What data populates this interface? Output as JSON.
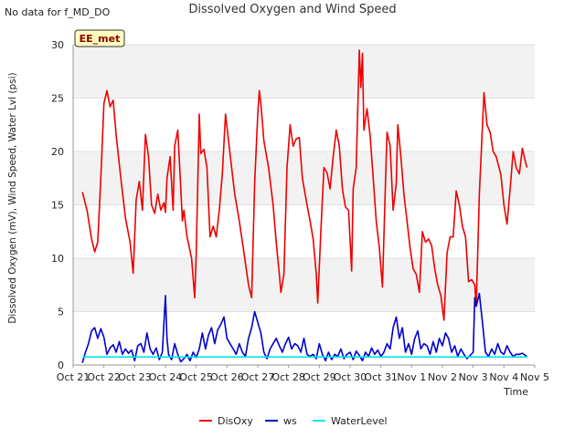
{
  "header": {
    "note": "No data for f_MD_DO",
    "title": "Dissolved Oxygen and Wind Speed"
  },
  "badge": {
    "label": "EE_met"
  },
  "chart_data": {
    "type": "line",
    "title": "Dissolved Oxygen and Wind Speed",
    "xlabel": "Time",
    "ylabel": "Dissolved Oxygen (mV), Wind Speed, Water Lvl (psi)",
    "ylim": [
      0,
      30
    ],
    "xlim": [
      "Oct 21",
      "Nov 5"
    ],
    "x_unit": "days",
    "xticks": [
      "Oct 21",
      "Oct 22",
      "Oct 23",
      "Oct 24",
      "Oct 25",
      "Oct 26",
      "Oct 27",
      "Oct 28",
      "Oct 29",
      "Oct 30",
      "Oct 31",
      "Nov 1",
      "Nov 2",
      "Nov 3",
      "Nov 4",
      "Nov 5"
    ],
    "yticks": [
      0,
      5,
      10,
      15,
      20,
      25,
      30
    ],
    "grid": "horizontal bands",
    "legend_position": "bottom",
    "series": [
      {
        "name": "DisOxy",
        "color": "#ee0000",
        "points": [
          [
            0.3,
            16.2
          ],
          [
            0.45,
            14.5
          ],
          [
            0.6,
            11.8
          ],
          [
            0.7,
            10.6
          ],
          [
            0.8,
            11.5
          ],
          [
            0.9,
            17.5
          ],
          [
            1.0,
            24.5
          ],
          [
            1.1,
            25.7
          ],
          [
            1.2,
            24.2
          ],
          [
            1.3,
            24.8
          ],
          [
            1.4,
            21.5
          ],
          [
            1.55,
            17.5
          ],
          [
            1.7,
            13.8
          ],
          [
            1.85,
            11.5
          ],
          [
            1.95,
            8.6
          ],
          [
            2.05,
            15.5
          ],
          [
            2.15,
            17.2
          ],
          [
            2.25,
            14.5
          ],
          [
            2.35,
            21.6
          ],
          [
            2.45,
            19.5
          ],
          [
            2.55,
            15.0
          ],
          [
            2.65,
            14.2
          ],
          [
            2.75,
            16.0
          ],
          [
            2.85,
            14.5
          ],
          [
            2.95,
            15.2
          ],
          [
            3.0,
            14.3
          ],
          [
            3.05,
            17.5
          ],
          [
            3.15,
            19.5
          ],
          [
            3.25,
            14.5
          ],
          [
            3.3,
            20.5
          ],
          [
            3.4,
            22.0
          ],
          [
            3.5,
            16.5
          ],
          [
            3.55,
            13.5
          ],
          [
            3.6,
            14.5
          ],
          [
            3.7,
            12.0
          ],
          [
            3.85,
            10.0
          ],
          [
            3.95,
            6.3
          ],
          [
            4.0,
            10.5
          ],
          [
            4.1,
            23.5
          ],
          [
            4.15,
            19.8
          ],
          [
            4.25,
            20.2
          ],
          [
            4.35,
            18.5
          ],
          [
            4.45,
            12.0
          ],
          [
            4.55,
            13.0
          ],
          [
            4.65,
            12.0
          ],
          [
            4.75,
            14.5
          ],
          [
            4.85,
            18.0
          ],
          [
            4.95,
            23.5
          ],
          [
            5.05,
            21.0
          ],
          [
            5.15,
            18.5
          ],
          [
            5.25,
            16.0
          ],
          [
            5.4,
            13.5
          ],
          [
            5.55,
            10.5
          ],
          [
            5.7,
            7.5
          ],
          [
            5.8,
            6.3
          ],
          [
            5.9,
            17.0
          ],
          [
            6.0,
            23.5
          ],
          [
            6.05,
            25.7
          ],
          [
            6.1,
            24.5
          ],
          [
            6.2,
            21.0
          ],
          [
            6.35,
            18.5
          ],
          [
            6.5,
            15.0
          ],
          [
            6.6,
            11.5
          ],
          [
            6.7,
            8.5
          ],
          [
            6.75,
            6.8
          ],
          [
            6.85,
            8.5
          ],
          [
            6.95,
            18.5
          ],
          [
            7.05,
            22.5
          ],
          [
            7.15,
            20.5
          ],
          [
            7.25,
            21.2
          ],
          [
            7.35,
            21.3
          ],
          [
            7.45,
            17.5
          ],
          [
            7.6,
            15.0
          ],
          [
            7.7,
            13.5
          ],
          [
            7.8,
            11.8
          ],
          [
            7.9,
            8.5
          ],
          [
            7.95,
            5.8
          ],
          [
            8.05,
            12.5
          ],
          [
            8.15,
            18.5
          ],
          [
            8.25,
            18.0
          ],
          [
            8.35,
            16.5
          ],
          [
            8.45,
            19.5
          ],
          [
            8.55,
            22.0
          ],
          [
            8.65,
            20.5
          ],
          [
            8.75,
            16.5
          ],
          [
            8.85,
            14.8
          ],
          [
            8.95,
            14.5
          ],
          [
            9.05,
            8.8
          ],
          [
            9.1,
            16.5
          ],
          [
            9.2,
            18.5
          ],
          [
            9.3,
            29.5
          ],
          [
            9.35,
            26.0
          ],
          [
            9.4,
            29.2
          ],
          [
            9.45,
            22.0
          ],
          [
            9.55,
            24.0
          ],
          [
            9.65,
            21.5
          ],
          [
            9.75,
            17.5
          ],
          [
            9.85,
            13.5
          ],
          [
            9.95,
            11.0
          ],
          [
            10.05,
            7.3
          ],
          [
            10.15,
            17.0
          ],
          [
            10.2,
            21.8
          ],
          [
            10.3,
            20.5
          ],
          [
            10.4,
            14.5
          ],
          [
            10.5,
            17.0
          ],
          [
            10.55,
            22.5
          ],
          [
            10.65,
            19.5
          ],
          [
            10.75,
            16.0
          ],
          [
            10.85,
            13.5
          ],
          [
            10.95,
            11.0
          ],
          [
            11.05,
            9.0
          ],
          [
            11.15,
            8.5
          ],
          [
            11.25,
            6.8
          ],
          [
            11.35,
            12.5
          ],
          [
            11.45,
            11.5
          ],
          [
            11.55,
            11.8
          ],
          [
            11.65,
            11.2
          ],
          [
            11.75,
            9.0
          ],
          [
            11.85,
            7.5
          ],
          [
            11.95,
            6.5
          ],
          [
            12.05,
            4.2
          ],
          [
            12.15,
            10.5
          ],
          [
            12.25,
            12.0
          ],
          [
            12.35,
            12.0
          ],
          [
            12.45,
            16.3
          ],
          [
            12.55,
            15.0
          ],
          [
            12.65,
            13.0
          ],
          [
            12.75,
            12.0
          ],
          [
            12.85,
            7.8
          ],
          [
            12.95,
            8.0
          ],
          [
            13.05,
            7.5
          ],
          [
            13.1,
            5.5
          ],
          [
            13.2,
            16.0
          ],
          [
            13.35,
            25.5
          ],
          [
            13.45,
            22.5
          ],
          [
            13.55,
            21.8
          ],
          [
            13.65,
            20.0
          ],
          [
            13.75,
            19.5
          ],
          [
            13.9,
            17.8
          ],
          [
            14.0,
            15.0
          ],
          [
            14.1,
            13.2
          ],
          [
            14.2,
            16.5
          ],
          [
            14.3,
            20.0
          ],
          [
            14.4,
            18.5
          ],
          [
            14.5,
            17.9
          ],
          [
            14.6,
            20.3
          ],
          [
            14.7,
            19.0
          ],
          [
            14.75,
            18.5
          ]
        ]
      },
      {
        "name": "ws",
        "color": "#0000cc",
        "points": [
          [
            0.3,
            0.2
          ],
          [
            0.4,
            1.2
          ],
          [
            0.5,
            2.0
          ],
          [
            0.6,
            3.2
          ],
          [
            0.7,
            3.5
          ],
          [
            0.8,
            2.5
          ],
          [
            0.9,
            3.4
          ],
          [
            1.0,
            2.6
          ],
          [
            1.1,
            1.0
          ],
          [
            1.2,
            1.6
          ],
          [
            1.3,
            1.9
          ],
          [
            1.4,
            1.2
          ],
          [
            1.5,
            2.2
          ],
          [
            1.6,
            1.0
          ],
          [
            1.7,
            1.5
          ],
          [
            1.8,
            1.1
          ],
          [
            1.9,
            1.4
          ],
          [
            2.0,
            0.4
          ],
          [
            2.1,
            1.8
          ],
          [
            2.2,
            2.0
          ],
          [
            2.3,
            1.2
          ],
          [
            2.4,
            3.0
          ],
          [
            2.5,
            1.5
          ],
          [
            2.6,
            1.0
          ],
          [
            2.7,
            1.6
          ],
          [
            2.8,
            0.5
          ],
          [
            2.9,
            1.2
          ],
          [
            3.0,
            6.5
          ],
          [
            3.05,
            2.5
          ],
          [
            3.1,
            1.0
          ],
          [
            3.2,
            0.5
          ],
          [
            3.3,
            2.0
          ],
          [
            3.4,
            1.0
          ],
          [
            3.5,
            0.3
          ],
          [
            3.6,
            0.6
          ],
          [
            3.7,
            1.0
          ],
          [
            3.8,
            0.4
          ],
          [
            3.9,
            1.2
          ],
          [
            4.0,
            0.7
          ],
          [
            4.1,
            1.5
          ],
          [
            4.2,
            3.0
          ],
          [
            4.3,
            1.5
          ],
          [
            4.4,
            2.8
          ],
          [
            4.5,
            3.5
          ],
          [
            4.6,
            2.0
          ],
          [
            4.7,
            3.3
          ],
          [
            4.8,
            3.8
          ],
          [
            4.9,
            4.5
          ],
          [
            5.0,
            2.5
          ],
          [
            5.1,
            2.0
          ],
          [
            5.2,
            1.5
          ],
          [
            5.3,
            1.0
          ],
          [
            5.4,
            2.0
          ],
          [
            5.5,
            1.2
          ],
          [
            5.6,
            0.8
          ],
          [
            5.7,
            2.5
          ],
          [
            5.8,
            3.5
          ],
          [
            5.9,
            5.0
          ],
          [
            6.0,
            4.0
          ],
          [
            6.1,
            3.0
          ],
          [
            6.2,
            1.2
          ],
          [
            6.3,
            0.6
          ],
          [
            6.4,
            1.5
          ],
          [
            6.5,
            2.0
          ],
          [
            6.6,
            2.5
          ],
          [
            6.7,
            1.8
          ],
          [
            6.8,
            1.2
          ],
          [
            6.9,
            2.0
          ],
          [
            7.0,
            2.6
          ],
          [
            7.1,
            1.5
          ],
          [
            7.2,
            2.0
          ],
          [
            7.3,
            1.8
          ],
          [
            7.4,
            1.2
          ],
          [
            7.5,
            2.5
          ],
          [
            7.6,
            1.0
          ],
          [
            7.7,
            0.8
          ],
          [
            7.8,
            1.0
          ],
          [
            7.9,
            0.6
          ],
          [
            8.0,
            2.0
          ],
          [
            8.1,
            1.0
          ],
          [
            8.2,
            0.4
          ],
          [
            8.3,
            1.2
          ],
          [
            8.4,
            0.5
          ],
          [
            8.5,
            1.0
          ],
          [
            8.6,
            0.8
          ],
          [
            8.7,
            1.5
          ],
          [
            8.8,
            0.6
          ],
          [
            8.9,
            1.0
          ],
          [
            9.0,
            1.2
          ],
          [
            9.1,
            0.5
          ],
          [
            9.2,
            1.3
          ],
          [
            9.3,
            0.9
          ],
          [
            9.4,
            0.4
          ],
          [
            9.5,
            1.2
          ],
          [
            9.6,
            0.8
          ],
          [
            9.7,
            1.6
          ],
          [
            9.8,
            1.0
          ],
          [
            9.9,
            1.4
          ],
          [
            10.0,
            0.8
          ],
          [
            10.1,
            1.2
          ],
          [
            10.2,
            2.0
          ],
          [
            10.3,
            1.5
          ],
          [
            10.4,
            3.5
          ],
          [
            10.5,
            4.5
          ],
          [
            10.6,
            2.5
          ],
          [
            10.7,
            3.5
          ],
          [
            10.8,
            1.2
          ],
          [
            10.9,
            2.0
          ],
          [
            11.0,
            1.0
          ],
          [
            11.1,
            2.5
          ],
          [
            11.2,
            3.2
          ],
          [
            11.3,
            1.5
          ],
          [
            11.4,
            2.0
          ],
          [
            11.5,
            1.8
          ],
          [
            11.6,
            1.0
          ],
          [
            11.7,
            2.2
          ],
          [
            11.8,
            1.2
          ],
          [
            11.9,
            2.5
          ],
          [
            12.0,
            1.8
          ],
          [
            12.1,
            3.0
          ],
          [
            12.2,
            2.5
          ],
          [
            12.3,
            1.2
          ],
          [
            12.4,
            1.8
          ],
          [
            12.5,
            0.8
          ],
          [
            12.6,
            1.5
          ],
          [
            12.7,
            1.0
          ],
          [
            12.8,
            0.6
          ],
          [
            12.9,
            0.9
          ],
          [
            13.0,
            1.2
          ],
          [
            13.05,
            6.3
          ],
          [
            13.1,
            5.5
          ],
          [
            13.2,
            6.7
          ],
          [
            13.3,
            4.0
          ],
          [
            13.4,
            1.2
          ],
          [
            13.5,
            0.8
          ],
          [
            13.6,
            1.5
          ],
          [
            13.7,
            1.0
          ],
          [
            13.8,
            2.0
          ],
          [
            13.9,
            1.2
          ],
          [
            14.0,
            1.0
          ],
          [
            14.1,
            1.8
          ],
          [
            14.2,
            1.2
          ],
          [
            14.3,
            0.8
          ],
          [
            14.4,
            1.0
          ],
          [
            14.5,
            1.0
          ],
          [
            14.6,
            1.1
          ],
          [
            14.75,
            0.8
          ]
        ]
      },
      {
        "name": "WaterLevel",
        "color": "#00e5ee",
        "points": [
          [
            0.3,
            0.75
          ],
          [
            14.75,
            0.75
          ]
        ]
      }
    ]
  }
}
